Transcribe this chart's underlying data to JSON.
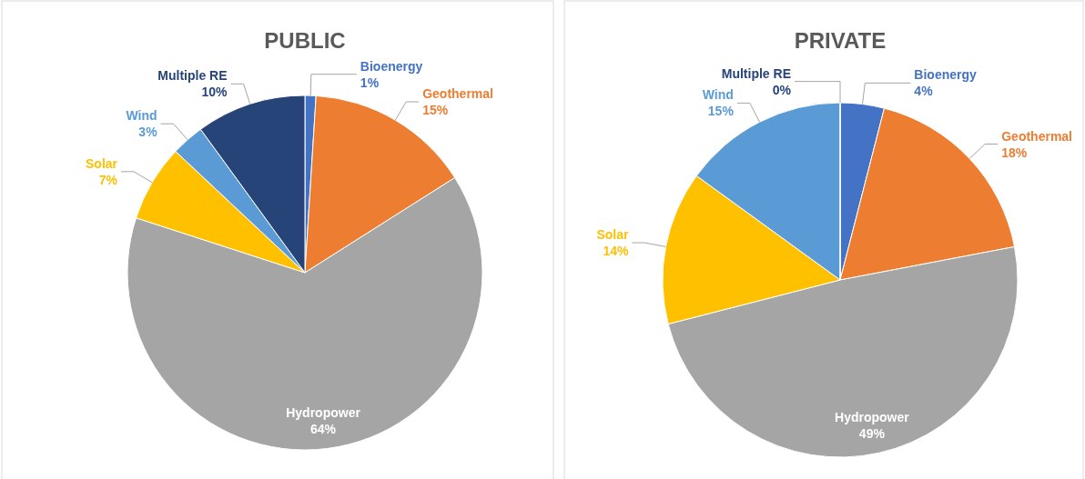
{
  "chart_data": [
    {
      "type": "pie",
      "title": "PUBLIC",
      "categories": [
        "Bioenergy",
        "Geothermal",
        "Hydropower",
        "Solar",
        "Wind",
        "Multiple RE"
      ],
      "values": [
        1,
        15,
        64,
        7,
        3,
        10
      ],
      "value_labels": [
        "1%",
        "15%",
        "64%",
        "7%",
        "3%",
        "10%"
      ],
      "colors": [
        "#4472c4",
        "#ed7d31",
        "#a5a5a5",
        "#ffc000",
        "#5b9bd5",
        "#264478"
      ]
    },
    {
      "type": "pie",
      "title": "PRIVATE",
      "categories": [
        "Bioenergy",
        "Geothermal",
        "Hydropower",
        "Solar",
        "Wind",
        "Multiple RE"
      ],
      "values": [
        4,
        18,
        49,
        14,
        15,
        0
      ],
      "value_labels": [
        "4%",
        "18%",
        "49%",
        "14%",
        "15%",
        "0%"
      ],
      "colors": [
        "#4472c4",
        "#ed7d31",
        "#a5a5a5",
        "#ffc000",
        "#5b9bd5",
        "#264478"
      ]
    }
  ]
}
